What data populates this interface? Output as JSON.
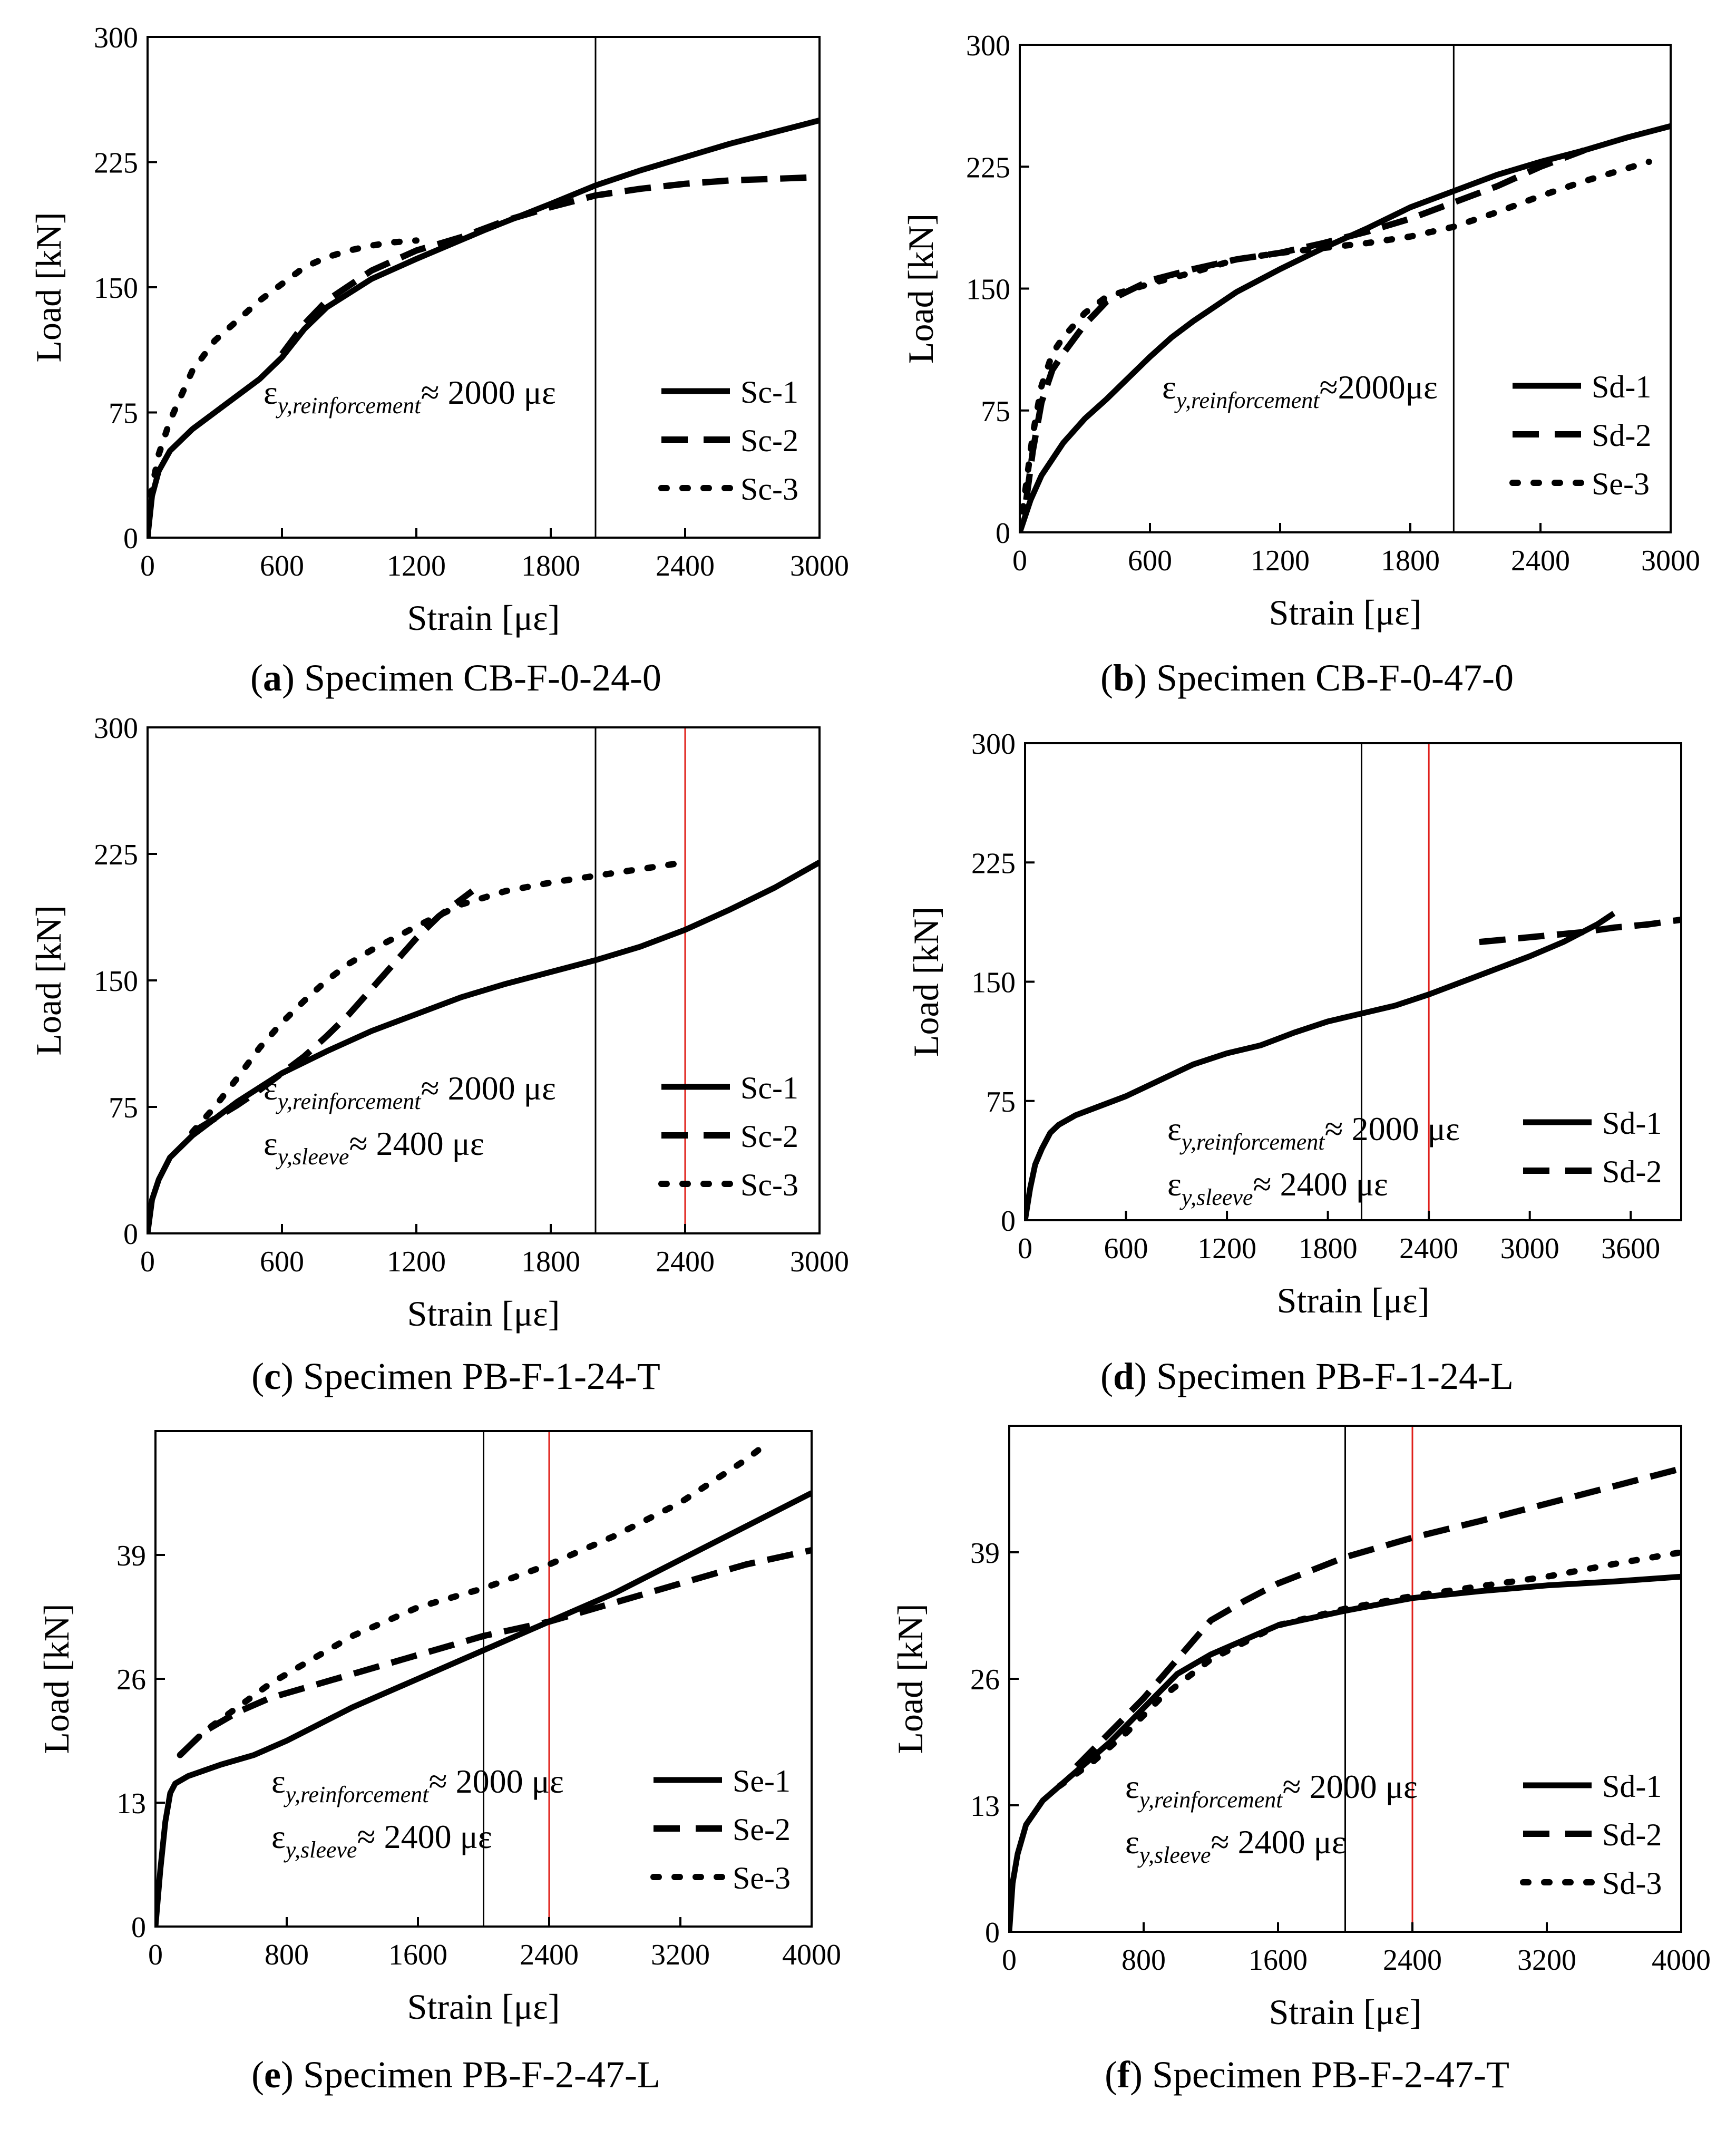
{
  "chart_data": [
    {
      "type": "line",
      "panel_letter": "a",
      "caption": "Specimen CB-F-0-24-0",
      "xlabel": "Strain [με]",
      "ylabel": "Load [kN]",
      "xlim": [
        0,
        3000
      ],
      "ylim": [
        0,
        300
      ],
      "xticks": [
        "0",
        "600",
        "1200",
        "1800",
        "2400",
        "3000"
      ],
      "yticks": [
        "0",
        "75",
        "150",
        "225",
        "300"
      ],
      "xtick_values": [
        0,
        600,
        1200,
        1800,
        2400,
        3000
      ],
      "ytick_values": [
        0,
        75,
        150,
        225,
        300
      ],
      "vlines": [
        {
          "x": 2000,
          "color": "#000000"
        }
      ],
      "legend": {
        "position": "bottom-right"
      },
      "annotations": [
        {
          "main": "ε",
          "sub": "y,reinforcement",
          "value": "≈ 2000 με"
        }
      ],
      "series": [
        {
          "name": "Sc-1",
          "style": "solid",
          "x": [
            0,
            20,
            50,
            100,
            200,
            300,
            400,
            500,
            600,
            700,
            800,
            1000,
            1200,
            1500,
            1800,
            2000,
            2200,
            2400,
            2600,
            2800,
            3000
          ],
          "y": [
            0,
            25,
            40,
            52,
            65,
            75,
            85,
            95,
            108,
            125,
            138,
            155,
            167,
            184,
            200,
            211,
            220,
            228,
            236,
            243,
            250
          ]
        },
        {
          "name": "Sc-2",
          "style": "dashed",
          "x": [
            600,
            700,
            800,
            1000,
            1200,
            1400,
            1600,
            1800,
            2000,
            2200,
            2400,
            2600,
            2800,
            3000
          ],
          "y": [
            110,
            128,
            142,
            160,
            172,
            180,
            190,
            198,
            205,
            209,
            212,
            214,
            215,
            216
          ]
        },
        {
          "name": "Sc-3",
          "style": "dotted",
          "x": [
            0,
            20,
            50,
            100,
            200,
            300,
            400,
            500,
            600,
            700,
            800,
            900,
            1000,
            1100,
            1200
          ],
          "y": [
            0,
            30,
            50,
            70,
            100,
            118,
            130,
            142,
            152,
            162,
            168,
            172,
            175,
            177,
            178
          ]
        }
      ]
    },
    {
      "type": "line",
      "panel_letter": "b",
      "caption": "Specimen CB-F-0-47-0",
      "xlabel": "Strain [με]",
      "ylabel": "Load [kN]",
      "xlim": [
        0,
        3000
      ],
      "ylim": [
        0,
        300
      ],
      "xticks": [
        "0",
        "600",
        "1200",
        "1800",
        "2400",
        "3000"
      ],
      "yticks": [
        "0",
        "75",
        "150",
        "225",
        "300"
      ],
      "xtick_values": [
        0,
        600,
        1200,
        1800,
        2400,
        3000
      ],
      "ytick_values": [
        0,
        75,
        150,
        225,
        300
      ],
      "vlines": [
        {
          "x": 2000,
          "color": "#000000"
        }
      ],
      "legend": {
        "position": "bottom-right"
      },
      "annotations": [
        {
          "main": "ε",
          "sub": "y,reinforcement",
          "value": "≈2000με"
        }
      ],
      "series": [
        {
          "name": "Sd-1",
          "style": "solid",
          "x": [
            0,
            50,
            100,
            200,
            300,
            400,
            500,
            600,
            700,
            800,
            1000,
            1200,
            1400,
            1600,
            1800,
            2000,
            2200,
            2400,
            2600,
            2800,
            3000
          ],
          "y": [
            0,
            20,
            35,
            55,
            70,
            82,
            95,
            108,
            120,
            130,
            148,
            162,
            175,
            187,
            200,
            210,
            220,
            228,
            235,
            243,
            250
          ]
        },
        {
          "name": "Sd-2",
          "style": "dashed",
          "x": [
            30,
            60,
            100,
            150,
            200,
            300,
            400,
            600,
            800,
            1000,
            1200,
            1400,
            1600,
            1800,
            2000,
            2200,
            2400,
            2600
          ],
          "y": [
            20,
            50,
            80,
            100,
            110,
            128,
            142,
            155,
            162,
            168,
            172,
            178,
            185,
            193,
            203,
            213,
            225,
            235
          ]
        },
        {
          "name": "Se-3",
          "style": "dotted",
          "x": [
            0,
            30,
            60,
            100,
            150,
            200,
            300,
            400,
            600,
            800,
            1000,
            1200,
            1400,
            1600,
            1800,
            2000,
            2200,
            2400,
            2600,
            2800,
            2900
          ],
          "y": [
            0,
            30,
            60,
            90,
            110,
            120,
            135,
            145,
            153,
            160,
            168,
            172,
            175,
            178,
            182,
            188,
            197,
            207,
            216,
            224,
            228
          ]
        }
      ]
    },
    {
      "type": "line",
      "panel_letter": "c",
      "caption": "Specimen PB-F-1-24-T",
      "xlabel": "Strain [με]",
      "ylabel": "Load [kN]",
      "xlim": [
        0,
        3000
      ],
      "ylim": [
        0,
        300
      ],
      "xticks": [
        "0",
        "600",
        "1200",
        "1800",
        "2400",
        "3000"
      ],
      "yticks": [
        "0",
        "75",
        "150",
        "225",
        "300"
      ],
      "xtick_values": [
        0,
        600,
        1200,
        1800,
        2400,
        3000
      ],
      "ytick_values": [
        0,
        75,
        150,
        225,
        300
      ],
      "vlines": [
        {
          "x": 2000,
          "color": "#000000"
        },
        {
          "x": 2400,
          "color": "#e0201b"
        }
      ],
      "legend": {
        "position": "bottom-right"
      },
      "annotations": [
        {
          "main": "ε",
          "sub": "y,reinforcement",
          "value": "≈ 2000 με"
        },
        {
          "main": "ε",
          "sub": "y,sleeve",
          "value": "≈ 2400 με"
        }
      ],
      "series": [
        {
          "name": "Sc-1",
          "style": "solid",
          "x": [
            0,
            20,
            50,
            100,
            200,
            300,
            400,
            600,
            800,
            1000,
            1200,
            1400,
            1600,
            1800,
            2000,
            2200,
            2400,
            2600,
            2800,
            3000
          ],
          "y": [
            0,
            20,
            32,
            45,
            58,
            68,
            78,
            95,
            108,
            120,
            130,
            140,
            148,
            155,
            162,
            170,
            180,
            192,
            205,
            220
          ]
        },
        {
          "name": "Sc-2",
          "style": "dashed",
          "x": [
            200,
            300,
            400,
            500,
            600,
            700,
            800,
            900,
            1000,
            1100,
            1200,
            1300,
            1400,
            1450
          ],
          "y": [
            60,
            68,
            76,
            85,
            95,
            105,
            117,
            130,
            145,
            160,
            175,
            188,
            198,
            203
          ]
        },
        {
          "name": "Sc-3",
          "style": "dotted",
          "x": [
            200,
            300,
            400,
            500,
            600,
            700,
            800,
            900,
            1000,
            1100,
            1200,
            1400,
            1600,
            1800,
            2000,
            2200,
            2400
          ],
          "y": [
            60,
            75,
            92,
            110,
            125,
            138,
            150,
            160,
            168,
            175,
            182,
            195,
            203,
            208,
            212,
            216,
            220
          ]
        }
      ]
    },
    {
      "type": "line",
      "panel_letter": "d",
      "caption": "Specimen PB-F-1-24-L",
      "xlabel": "Strain [με]",
      "ylabel": "Load [kN]",
      "xlim": [
        0,
        3900
      ],
      "ylim": [
        0,
        300
      ],
      "xticks": [
        "0",
        "600",
        "1200",
        "1800",
        "2400",
        "3000",
        "3600"
      ],
      "yticks": [
        "0",
        "75",
        "150",
        "225",
        "300"
      ],
      "xtick_values": [
        0,
        600,
        1200,
        1800,
        2400,
        3000,
        3600
      ],
      "ytick_values": [
        0,
        75,
        150,
        225,
        300
      ],
      "vlines": [
        {
          "x": 2000,
          "color": "#000000"
        },
        {
          "x": 2400,
          "color": "#e0201b"
        }
      ],
      "legend": {
        "position": "bottom-right"
      },
      "annotations": [
        {
          "main": "ε",
          "sub": "y,reinforcement",
          "value": "≈ 2000 με"
        },
        {
          "main": "ε",
          "sub": "y,sleeve",
          "value": "≈ 2400 με"
        }
      ],
      "series": [
        {
          "name": "Sd-1",
          "style": "solid",
          "x": [
            0,
            30,
            60,
            100,
            150,
            200,
            300,
            400,
            600,
            800,
            1000,
            1200,
            1400,
            1600,
            1800,
            2000,
            2200,
            2400,
            2600,
            2800,
            3000,
            3200,
            3400,
            3500
          ],
          "y": [
            0,
            20,
            35,
            45,
            55,
            60,
            66,
            70,
            78,
            88,
            98,
            105,
            110,
            118,
            125,
            130,
            135,
            142,
            150,
            158,
            166,
            175,
            186,
            193
          ]
        },
        {
          "name": "Sd-2",
          "style": "dashed",
          "x": [
            2700,
            2900,
            3100,
            3300,
            3500,
            3700,
            3900
          ],
          "y": [
            175,
            177,
            179,
            181,
            184,
            186,
            189
          ]
        }
      ]
    },
    {
      "type": "line",
      "panel_letter": "e",
      "caption": "Specimen PB-F-2-47-L",
      "xlabel": "Strain [με]",
      "ylabel": "Load [kN]",
      "xlim": [
        0,
        4000
      ],
      "ylim": [
        0,
        52
      ],
      "xticks": [
        "0",
        "800",
        "1600",
        "2400",
        "3200",
        "4000"
      ],
      "yticks": [
        "0",
        "13",
        "26",
        "39"
      ],
      "xtick_values": [
        0,
        800,
        1600,
        2400,
        3200,
        4000
      ],
      "ytick_values": [
        0,
        13,
        26,
        39
      ],
      "vlines": [
        {
          "x": 2000,
          "color": "#000000"
        },
        {
          "x": 2400,
          "color": "#e0201b"
        }
      ],
      "legend": {
        "position": "bottom-right"
      },
      "annotations": [
        {
          "main": "ε",
          "sub": "y,reinforcement",
          "value": "≈ 2000 με"
        },
        {
          "main": "ε",
          "sub": "y,sleeve",
          "value": "≈ 2400 με"
        }
      ],
      "series": [
        {
          "name": "Se-1",
          "style": "solid",
          "x": [
            0,
            30,
            60,
            90,
            120,
            200,
            400,
            600,
            800,
            1200,
            1600,
            2000,
            2400,
            2800,
            3200,
            3600,
            4000
          ],
          "y": [
            0,
            6,
            11,
            14,
            15,
            15.8,
            17,
            18,
            19.5,
            23,
            26,
            29,
            32,
            35,
            38.5,
            42,
            45.5
          ]
        },
        {
          "name": "Se-2",
          "style": "dashed",
          "x": [
            150,
            300,
            500,
            700,
            900,
            1200,
            1600,
            2000,
            2400,
            2800,
            3200,
            3600,
            4000
          ],
          "y": [
            18,
            20.5,
            22.5,
            24,
            25,
            26.5,
            28.5,
            30.5,
            32,
            34,
            36,
            38,
            39.5
          ]
        },
        {
          "name": "Se-3",
          "style": "dotted",
          "x": [
            150,
            300,
            500,
            700,
            900,
            1200,
            1600,
            2000,
            2400,
            2800,
            3200,
            3600,
            3750
          ],
          "y": [
            18,
            20.5,
            23,
            25.5,
            27.5,
            30.5,
            33.5,
            35.5,
            38,
            41,
            44.5,
            49,
            51
          ]
        }
      ]
    },
    {
      "type": "line",
      "panel_letter": "f",
      "caption": "Specimen PB-F-2-47-T",
      "xlabel": "Strain [με]",
      "ylabel": "Load [kN]",
      "xlim": [
        0,
        4000
      ],
      "ylim": [
        0,
        52
      ],
      "xticks": [
        "0",
        "800",
        "1600",
        "2400",
        "3200",
        "4000"
      ],
      "yticks": [
        "0",
        "13",
        "26",
        "39"
      ],
      "xtick_values": [
        0,
        800,
        1600,
        2400,
        3200,
        4000
      ],
      "ytick_values": [
        0,
        13,
        26,
        39
      ],
      "vlines": [
        {
          "x": 2000,
          "color": "#000000"
        },
        {
          "x": 2400,
          "color": "#e0201b"
        }
      ],
      "legend": {
        "position": "bottom-right"
      },
      "annotations": [
        {
          "main": "ε",
          "sub": "y,reinforcement",
          "value": "≈ 2000 με"
        },
        {
          "main": "ε",
          "sub": "y,sleeve",
          "value": "≈ 2400 με"
        }
      ],
      "series": [
        {
          "name": "Sd-1",
          "style": "solid",
          "x": [
            0,
            20,
            50,
            100,
            200,
            300,
            400,
            600,
            800,
            1000,
            1200,
            1600,
            2000,
            2400,
            2800,
            3200,
            3600,
            4000
          ],
          "y": [
            0,
            5,
            8,
            11,
            13.5,
            15,
            16.5,
            19.5,
            23,
            26.5,
            28.5,
            31.5,
            33,
            34.3,
            35,
            35.6,
            36,
            36.5
          ]
        },
        {
          "name": "Sd-2",
          "style": "dashed",
          "x": [
            400,
            600,
            800,
            1000,
            1200,
            1400,
            1600,
            2000,
            2400,
            2800,
            3200,
            3600,
            4000
          ],
          "y": [
            17,
            20.5,
            24,
            28,
            32,
            34,
            35.8,
            38.5,
            40.5,
            42.2,
            44,
            45.8,
            47.6
          ]
        },
        {
          "name": "Sd-3",
          "style": "dotted",
          "x": [
            300,
            500,
            700,
            900,
            1200,
            1600,
            2000,
            2400,
            2800,
            3200,
            3600,
            4000
          ],
          "y": [
            15,
            17.5,
            20.5,
            24,
            28,
            31.5,
            33.2,
            34.5,
            35.5,
            36.5,
            37.8,
            39
          ]
        }
      ]
    }
  ]
}
